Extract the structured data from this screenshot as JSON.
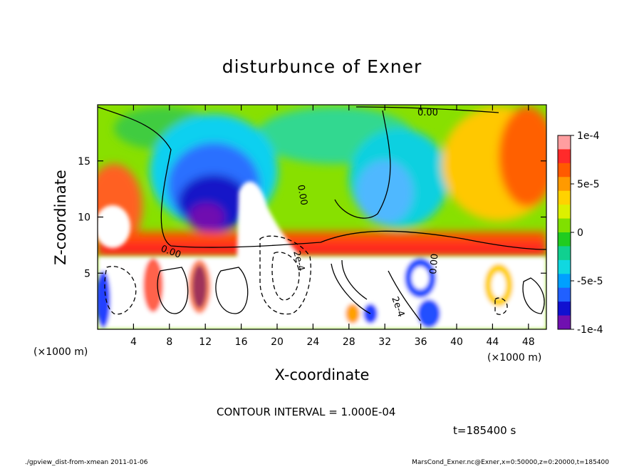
{
  "chart_data": {
    "type": "heatmap",
    "title": "disturbunce of Exner",
    "xlabel": "X-coordinate",
    "ylabel": "Z-coordinate",
    "x_unit": "(×1000 m)",
    "y_unit": "(×1000 m)",
    "xlim": [
      0,
      50
    ],
    "ylim": [
      0,
      20
    ],
    "x_ticks": [
      {
        "value": 4,
        "label": "4"
      },
      {
        "value": 8,
        "label": "8"
      },
      {
        "value": 12,
        "label": "12"
      },
      {
        "value": 16,
        "label": "16"
      },
      {
        "value": 20,
        "label": "20"
      },
      {
        "value": 24,
        "label": "24"
      },
      {
        "value": 28,
        "label": "28"
      },
      {
        "value": 32,
        "label": "32"
      },
      {
        "value": 36,
        "label": "36"
      },
      {
        "value": 40,
        "label": "40"
      },
      {
        "value": 44,
        "label": "44"
      },
      {
        "value": 48,
        "label": "48"
      }
    ],
    "y_ticks": [
      {
        "value": 5,
        "label": "5"
      },
      {
        "value": 10,
        "label": "10"
      },
      {
        "value": 15,
        "label": "15"
      }
    ],
    "colorbar": {
      "range": [
        -0.0001,
        0.0001
      ],
      "ticks": [
        {
          "value": 0.0001,
          "label": "1e-4"
        },
        {
          "value": 5e-05,
          "label": "5e-5"
        },
        {
          "value": 0,
          "label": "0"
        },
        {
          "value": -5e-05,
          "label": "-5e-5"
        },
        {
          "value": -0.0001,
          "label": "-1e-4"
        }
      ],
      "colors": [
        "#ff9ea0",
        "#ff2a2a",
        "#ff5a00",
        "#ff9a00",
        "#ffd200",
        "#dcf000",
        "#80e000",
        "#20cc20",
        "#10d090",
        "#10d8e0",
        "#00a0ff",
        "#2060ff",
        "#1010d0",
        "#7010b0"
      ]
    },
    "field_regions": [
      {
        "x": [
          0,
          50
        ],
        "z": [
          0,
          20
        ],
        "value": 1.5e-05
      },
      {
        "x": [
          7,
          20
        ],
        "z": [
          6,
          19
        ],
        "value": -4e-05
      },
      {
        "x": [
          9,
          20
        ],
        "z": [
          8,
          15
        ],
        "value": -8e-05
      },
      {
        "x": [
          26,
          37
        ],
        "z": [
          9,
          19
        ],
        "value": -3e-05
      },
      {
        "x": [
          38,
          50
        ],
        "z": [
          11,
          20
        ],
        "value": 6e-05
      },
      {
        "x": [
          0,
          3
        ],
        "z": [
          5,
          15
        ],
        "value": 7e-05
      },
      {
        "x": [
          0,
          50
        ],
        "z": [
          6,
          7.5
        ],
        "value": 8e-05
      },
      {
        "x": [
          0,
          24
        ],
        "z": [
          0,
          6
        ],
        "value": 0.0002
      },
      {
        "x": [
          24,
          50
        ],
        "z": [
          0,
          6
        ],
        "value": 0.00015
      },
      {
        "x": [
          16,
          24
        ],
        "z": [
          0,
          13
        ],
        "value": 0.00025
      }
    ],
    "contour_labels": [
      "0.00",
      "0.00",
      "0.00",
      "0.00",
      "2e-4",
      "2e-4"
    ],
    "contour_interval_text": "CONTOUR INTERVAL = 1.000E-04",
    "time_text": "t=185400 s"
  },
  "footer": {
    "left": "./gpview_dist-from-xmean  2011-01-06",
    "right": "MarsCond_Exner.nc@Exner,x=0:50000,z=0:20000,t=185400"
  }
}
